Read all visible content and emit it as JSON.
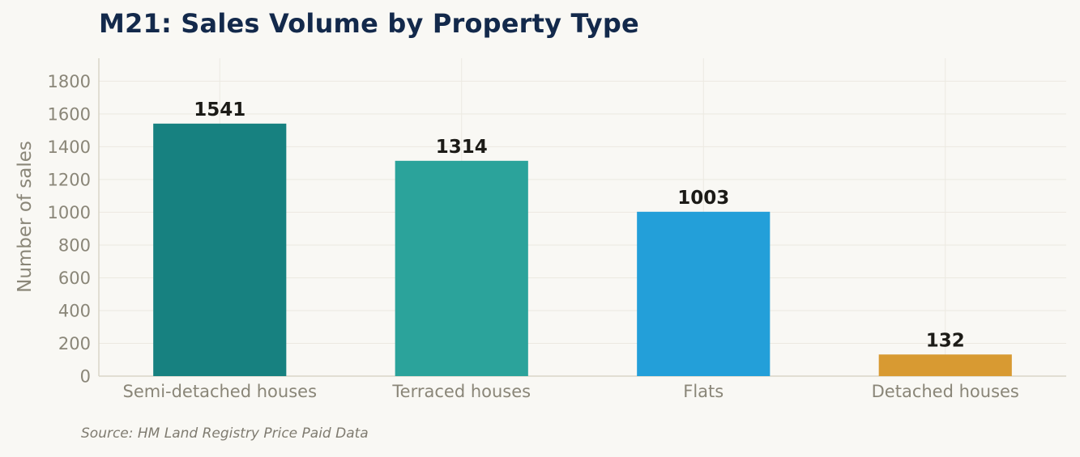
{
  "chart_data": {
    "type": "bar",
    "title": "M21: Sales Volume by Property Type",
    "xlabel": "",
    "ylabel": "Number of sales",
    "categories": [
      "Semi-detached houses",
      "Terraced houses",
      "Flats",
      "Detached houses"
    ],
    "values": [
      1541,
      1314,
      1003,
      132
    ],
    "data_labels": [
      "1541",
      "1314",
      "1003",
      "132"
    ],
    "colors": [
      "#178180",
      "#2ba39b",
      "#239fd9",
      "#d89a32"
    ],
    "ylim": [
      0,
      1940
    ],
    "yticks": [
      0,
      200,
      400,
      600,
      800,
      1000,
      1200,
      1400,
      1600,
      1800
    ],
    "ytick_labels": [
      "0",
      "200",
      "400",
      "600",
      "800",
      "1000",
      "1200",
      "1400",
      "1600",
      "1800"
    ],
    "grid": true,
    "legend": "none"
  },
  "source": "Source: HM Land Registry Price Paid Data"
}
